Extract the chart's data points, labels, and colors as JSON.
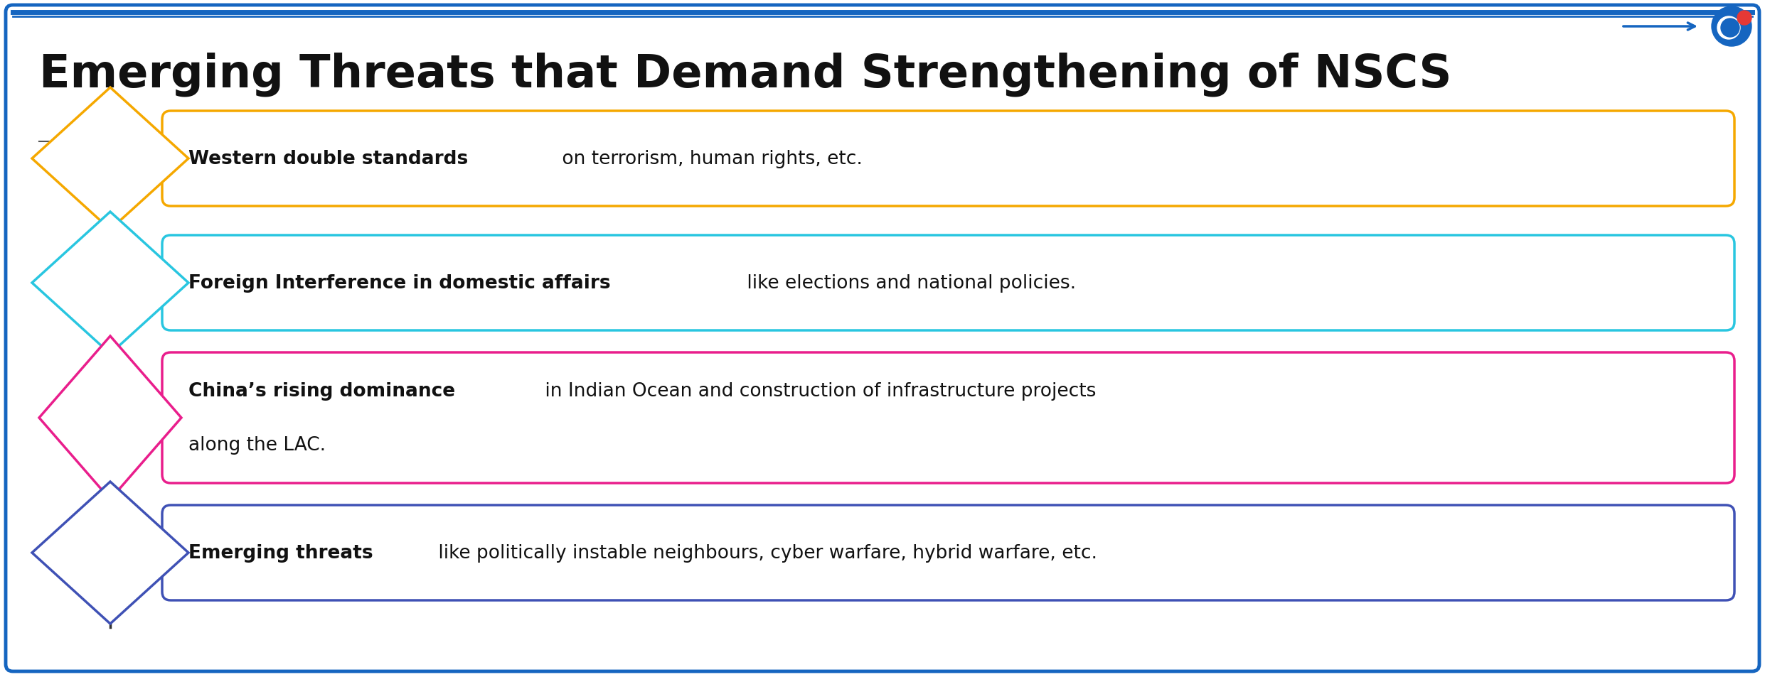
{
  "title": "Emerging Threats that Demand Strengthening of NSCS",
  "title_fontsize": 46,
  "background_color": "#ffffff",
  "border_color": "#1565c0",
  "title_color": "#111111",
  "text_fontsize": 19,
  "items": [
    {
      "bold_text": "Western double standards",
      "normal_text": " on terrorism, human rights, etc.",
      "box_color": "#f5a800",
      "diamond_color": "#f5a800",
      "multiline": false
    },
    {
      "bold_text": "Foreign Interference in domestic affairs",
      "normal_text": " like elections and national policies.",
      "box_color": "#29c6e0",
      "diamond_color": "#29c6e0",
      "multiline": false
    },
    {
      "bold_text": "China’s rising dominance",
      "normal_text_line1": " in Indian Ocean and construction of infrastructure projects",
      "normal_text_line2": "along the LAC.",
      "box_color": "#e91e8c",
      "diamond_color": "#e91e8c",
      "multiline": true
    },
    {
      "bold_text": "Emerging threats",
      "normal_text": " like politically instable neighbours, cyber warfare, hybrid warfare, etc.",
      "box_color": "#3f51b5",
      "diamond_color": "#3f51b5",
      "multiline": false
    }
  ],
  "top_border_color": "#1565c0",
  "bottom_border_color": "#1565c0",
  "arrow_color": "#1565c0",
  "logo_blue": "#1565c0",
  "logo_red": "#e53935"
}
